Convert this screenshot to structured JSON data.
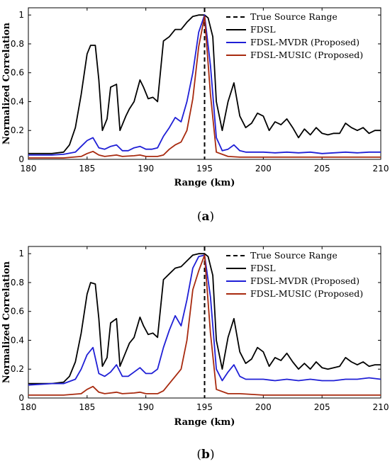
{
  "chart_data": [
    {
      "type": "line",
      "caption_open": "(",
      "caption_letter": "a",
      "caption_close": ")",
      "xlabel": "Range (km)",
      "ylabel": "Normalized Correlation",
      "xlim": [
        180,
        210
      ],
      "ylim": [
        0,
        1.05
      ],
      "xticks": [
        "180",
        "185",
        "190",
        "195",
        "200",
        "205",
        "210"
      ],
      "yticks": [
        "0",
        "0.2",
        "0.4",
        "0.6",
        "0.8",
        "1"
      ],
      "legend_position": "top-right",
      "true_source_range": 195,
      "series": [
        {
          "name": "True Source Range",
          "color": "#000000",
          "style": "dashed",
          "x": [],
          "y": []
        },
        {
          "name": "FDSL",
          "color": "#000000",
          "style": "solid",
          "x": [
            180,
            181,
            182,
            183,
            183.5,
            184,
            184.5,
            185,
            185.3,
            185.7,
            186,
            186.3,
            186.7,
            187,
            187.5,
            187.8,
            188.3,
            188.6,
            189,
            189.5,
            189.8,
            190.2,
            190.6,
            191,
            191.5,
            192,
            192.5,
            193,
            193.5,
            194,
            194.5,
            195,
            195.3,
            195.7,
            196,
            196.5,
            197,
            197.5,
            198,
            198.5,
            199,
            199.5,
            200,
            200.5,
            201,
            201.5,
            202,
            202.5,
            203,
            203.5,
            204,
            204.5,
            205,
            205.5,
            206,
            206.5,
            207,
            207.5,
            208,
            208.5,
            209,
            209.5,
            210
          ],
          "y": [
            0.04,
            0.04,
            0.04,
            0.05,
            0.1,
            0.22,
            0.45,
            0.73,
            0.79,
            0.79,
            0.55,
            0.2,
            0.28,
            0.5,
            0.52,
            0.2,
            0.3,
            0.35,
            0.4,
            0.55,
            0.5,
            0.42,
            0.43,
            0.4,
            0.82,
            0.85,
            0.9,
            0.9,
            0.95,
            0.99,
            1.0,
            1.0,
            0.98,
            0.85,
            0.4,
            0.2,
            0.4,
            0.53,
            0.3,
            0.22,
            0.25,
            0.32,
            0.3,
            0.2,
            0.26,
            0.24,
            0.28,
            0.22,
            0.15,
            0.21,
            0.17,
            0.22,
            0.18,
            0.17,
            0.18,
            0.18,
            0.25,
            0.22,
            0.2,
            0.22,
            0.18,
            0.2,
            0.2
          ]
        },
        {
          "name": "FDSL-MVDR (Proposed)",
          "color": "#1f1fd6",
          "style": "solid",
          "x": [
            180,
            182,
            183,
            184,
            184.5,
            185,
            185.5,
            186,
            186.5,
            187,
            187.5,
            188,
            188.5,
            189,
            189.5,
            190,
            190.5,
            191,
            191.5,
            192,
            192.5,
            193,
            193.5,
            194,
            194.5,
            195,
            195.5,
            196,
            196.5,
            197,
            197.5,
            198,
            198.5,
            199,
            200,
            201,
            202,
            203,
            204,
            205,
            206,
            207,
            208,
            209,
            210
          ],
          "y": [
            0.03,
            0.03,
            0.035,
            0.05,
            0.09,
            0.13,
            0.15,
            0.08,
            0.07,
            0.09,
            0.1,
            0.06,
            0.06,
            0.08,
            0.09,
            0.07,
            0.07,
            0.08,
            0.16,
            0.22,
            0.29,
            0.26,
            0.4,
            0.6,
            0.88,
            1.0,
            0.65,
            0.15,
            0.06,
            0.07,
            0.1,
            0.06,
            0.05,
            0.05,
            0.05,
            0.045,
            0.05,
            0.045,
            0.05,
            0.04,
            0.045,
            0.05,
            0.045,
            0.05,
            0.05
          ]
        },
        {
          "name": "FDSL-MUSIC (Proposed)",
          "color": "#a82a0f",
          "style": "solid",
          "x": [
            180,
            183,
            184.5,
            185,
            185.5,
            186,
            186.5,
            187,
            187.5,
            188,
            189,
            189.5,
            190,
            191,
            191.5,
            192,
            192.5,
            193,
            193.5,
            194,
            194.5,
            195,
            195.5,
            196,
            197,
            198,
            200,
            205,
            210
          ],
          "y": [
            0.01,
            0.01,
            0.02,
            0.04,
            0.055,
            0.03,
            0.02,
            0.025,
            0.03,
            0.02,
            0.025,
            0.03,
            0.02,
            0.02,
            0.03,
            0.07,
            0.1,
            0.12,
            0.2,
            0.42,
            0.78,
            0.99,
            0.45,
            0.05,
            0.02,
            0.015,
            0.015,
            0.015,
            0.015
          ]
        }
      ]
    },
    {
      "type": "line",
      "caption_open": "(",
      "caption_letter": "b",
      "caption_close": ")",
      "xlabel": "Range (km)",
      "ylabel": "Normalized Correlation",
      "xlim": [
        180,
        210
      ],
      "ylim": [
        0,
        1.05
      ],
      "xticks": [
        "180",
        "185",
        "190",
        "195",
        "200",
        "205",
        "210"
      ],
      "yticks": [
        "0",
        "0.2",
        "0.4",
        "0.6",
        "0.8",
        "1"
      ],
      "legend_position": "top-right",
      "true_source_range": 195,
      "series": [
        {
          "name": "True Source Range",
          "color": "#000000",
          "style": "dashed",
          "x": [],
          "y": []
        },
        {
          "name": "FDSL",
          "color": "#000000",
          "style": "solid",
          "x": [
            180,
            182,
            183,
            183.5,
            184,
            184.5,
            185,
            185.3,
            185.7,
            186,
            186.3,
            186.7,
            187,
            187.5,
            187.8,
            188.3,
            188.6,
            189,
            189.5,
            189.8,
            190.2,
            190.6,
            191,
            191.5,
            192,
            192.5,
            193,
            193.5,
            194,
            194.5,
            195,
            195.3,
            195.7,
            196,
            196.5,
            197,
            197.5,
            198,
            198.5,
            199,
            199.5,
            200,
            200.5,
            201,
            201.5,
            202,
            202.5,
            203,
            203.5,
            204,
            204.5,
            205,
            205.5,
            206,
            206.5,
            207,
            207.5,
            208,
            208.5,
            209,
            209.5,
            210
          ],
          "y": [
            0.1,
            0.1,
            0.11,
            0.15,
            0.25,
            0.45,
            0.72,
            0.8,
            0.79,
            0.55,
            0.22,
            0.28,
            0.52,
            0.55,
            0.22,
            0.32,
            0.38,
            0.42,
            0.56,
            0.5,
            0.44,
            0.45,
            0.42,
            0.82,
            0.86,
            0.9,
            0.91,
            0.95,
            0.99,
            1.0,
            1.0,
            0.98,
            0.85,
            0.4,
            0.2,
            0.42,
            0.55,
            0.32,
            0.24,
            0.27,
            0.35,
            0.32,
            0.22,
            0.28,
            0.26,
            0.31,
            0.25,
            0.2,
            0.24,
            0.2,
            0.25,
            0.21,
            0.2,
            0.21,
            0.22,
            0.28,
            0.25,
            0.23,
            0.25,
            0.22,
            0.23,
            0.23
          ]
        },
        {
          "name": "FDSL-MVDR (Proposed)",
          "color": "#1f1fd6",
          "style": "solid",
          "x": [
            180,
            182,
            183,
            184,
            184.5,
            185,
            185.5,
            186,
            186.5,
            187,
            187.5,
            188,
            188.5,
            189,
            189.5,
            190,
            190.5,
            191,
            191.5,
            192,
            192.5,
            193,
            193.5,
            194,
            194.5,
            195,
            195.5,
            196,
            196.5,
            197,
            197.5,
            198,
            198.5,
            199,
            200,
            201,
            202,
            203,
            204,
            205,
            206,
            207,
            208,
            209,
            210
          ],
          "y": [
            0.09,
            0.1,
            0.1,
            0.13,
            0.2,
            0.3,
            0.35,
            0.17,
            0.15,
            0.18,
            0.23,
            0.15,
            0.15,
            0.18,
            0.21,
            0.17,
            0.17,
            0.2,
            0.35,
            0.47,
            0.57,
            0.5,
            0.68,
            0.9,
            0.98,
            0.99,
            0.7,
            0.2,
            0.12,
            0.18,
            0.23,
            0.15,
            0.13,
            0.13,
            0.13,
            0.12,
            0.13,
            0.12,
            0.13,
            0.12,
            0.12,
            0.13,
            0.13,
            0.14,
            0.13
          ]
        },
        {
          "name": "FDSL-MUSIC (Proposed)",
          "color": "#a82a0f",
          "style": "solid",
          "x": [
            180,
            183,
            184.5,
            185,
            185.5,
            186,
            186.5,
            187,
            187.5,
            188,
            189,
            189.5,
            190,
            191,
            191.5,
            192,
            192.5,
            193,
            193.5,
            194,
            194.5,
            195,
            195.5,
            196,
            197,
            198,
            200,
            205,
            210
          ],
          "y": [
            0.02,
            0.02,
            0.03,
            0.06,
            0.08,
            0.04,
            0.03,
            0.035,
            0.04,
            0.03,
            0.035,
            0.04,
            0.03,
            0.03,
            0.05,
            0.1,
            0.15,
            0.2,
            0.4,
            0.75,
            0.88,
            0.99,
            0.45,
            0.06,
            0.03,
            0.03,
            0.02,
            0.02,
            0.02
          ]
        }
      ]
    }
  ]
}
